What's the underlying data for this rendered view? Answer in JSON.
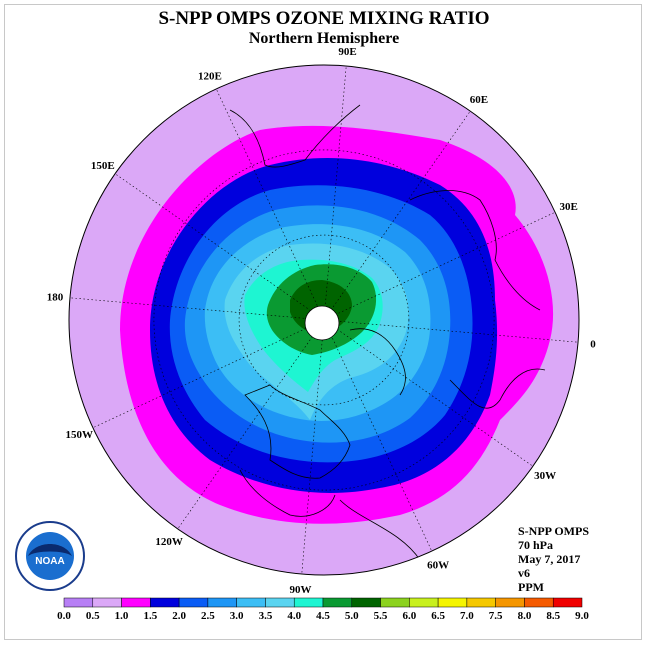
{
  "title": "S-NPP OMPS OZONE MIXING RATIO",
  "subtitle": "Northern Hemisphere",
  "longitude_labels": [
    "90E",
    "60E",
    "30E",
    "0",
    "30W",
    "60W",
    "90W",
    "120W",
    "150W",
    "180",
    "150E",
    "120E"
  ],
  "info": {
    "instrument": "S-NPP OMPS",
    "level": "70 hPa",
    "date": "May 7, 2017",
    "version": "v6",
    "units": "PPM"
  },
  "logo_text": "NOAA",
  "colorbar": {
    "ticks": [
      "0.0",
      "0.5",
      "1.0",
      "1.5",
      "2.0",
      "2.5",
      "3.0",
      "3.5",
      "4.0",
      "4.5",
      "5.0",
      "5.5",
      "6.0",
      "6.5",
      "7.0",
      "7.5",
      "8.0",
      "8.5",
      "9.0"
    ],
    "colors": [
      "#b77ff5",
      "#dba8f7",
      "#ff00ff",
      "#0000dd",
      "#0a5cf5",
      "#1e96f5",
      "#3cbef5",
      "#5ad4f0",
      "#1ef5d2",
      "#0a9a32",
      "#006400",
      "#8cd21e",
      "#c8f01e",
      "#f5f500",
      "#f5c800",
      "#f59600",
      "#f55a00",
      "#f00000",
      "#8c5a3c"
    ]
  },
  "ozone_levels": [
    {
      "level": "1.0",
      "color": "#dba8f7"
    },
    {
      "level": "1.5",
      "color": "#ff00ff"
    },
    {
      "level": "2.0",
      "color": "#0000dd"
    },
    {
      "level": "2.5",
      "color": "#0a5cf5"
    },
    {
      "level": "3.0",
      "color": "#1e96f5"
    },
    {
      "level": "3.5",
      "color": "#3cbef5"
    },
    {
      "level": "4.0",
      "color": "#5ad4f0"
    },
    {
      "level": "4.5",
      "color": "#1ef5d2"
    },
    {
      "level": "5.0",
      "color": "#0a9a32"
    },
    {
      "level": "5.5",
      "color": "#006400"
    }
  ]
}
